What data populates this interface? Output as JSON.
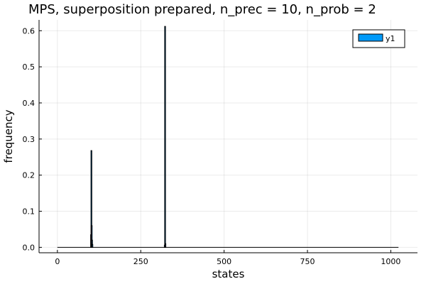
{
  "chart_data": {
    "type": "bar",
    "title": "MPS, superposition prepared, n_prec = 10, n_prob = 2",
    "xlabel": "states",
    "ylabel": "frequency",
    "xlim": [
      -55,
      1080
    ],
    "ylim": [
      -0.015,
      0.63
    ],
    "xticks": [
      0,
      250,
      500,
      750,
      1000
    ],
    "xtick_labels": [
      "0",
      "250",
      "500",
      "750",
      "1000"
    ],
    "yticks": [
      0.0,
      0.1,
      0.2,
      0.3,
      0.4,
      0.5,
      0.6
    ],
    "ytick_labels": [
      "0.0",
      "0.1",
      "0.2",
      "0.3",
      "0.4",
      "0.5",
      "0.6"
    ],
    "grid": true,
    "legend": {
      "position": "top-right",
      "entries": [
        {
          "name": "y1",
          "color": "#009af9"
        }
      ]
    },
    "series": [
      {
        "name": "y1",
        "color": "#009af9",
        "x": [
          0,
          101,
          102,
          103,
          104,
          105,
          322,
          323,
          324,
          1023
        ],
        "values": [
          0.0,
          0.035,
          0.268,
          0.06,
          0.02,
          0.008,
          0.006,
          0.612,
          0.01,
          0.0
        ]
      }
    ]
  }
}
